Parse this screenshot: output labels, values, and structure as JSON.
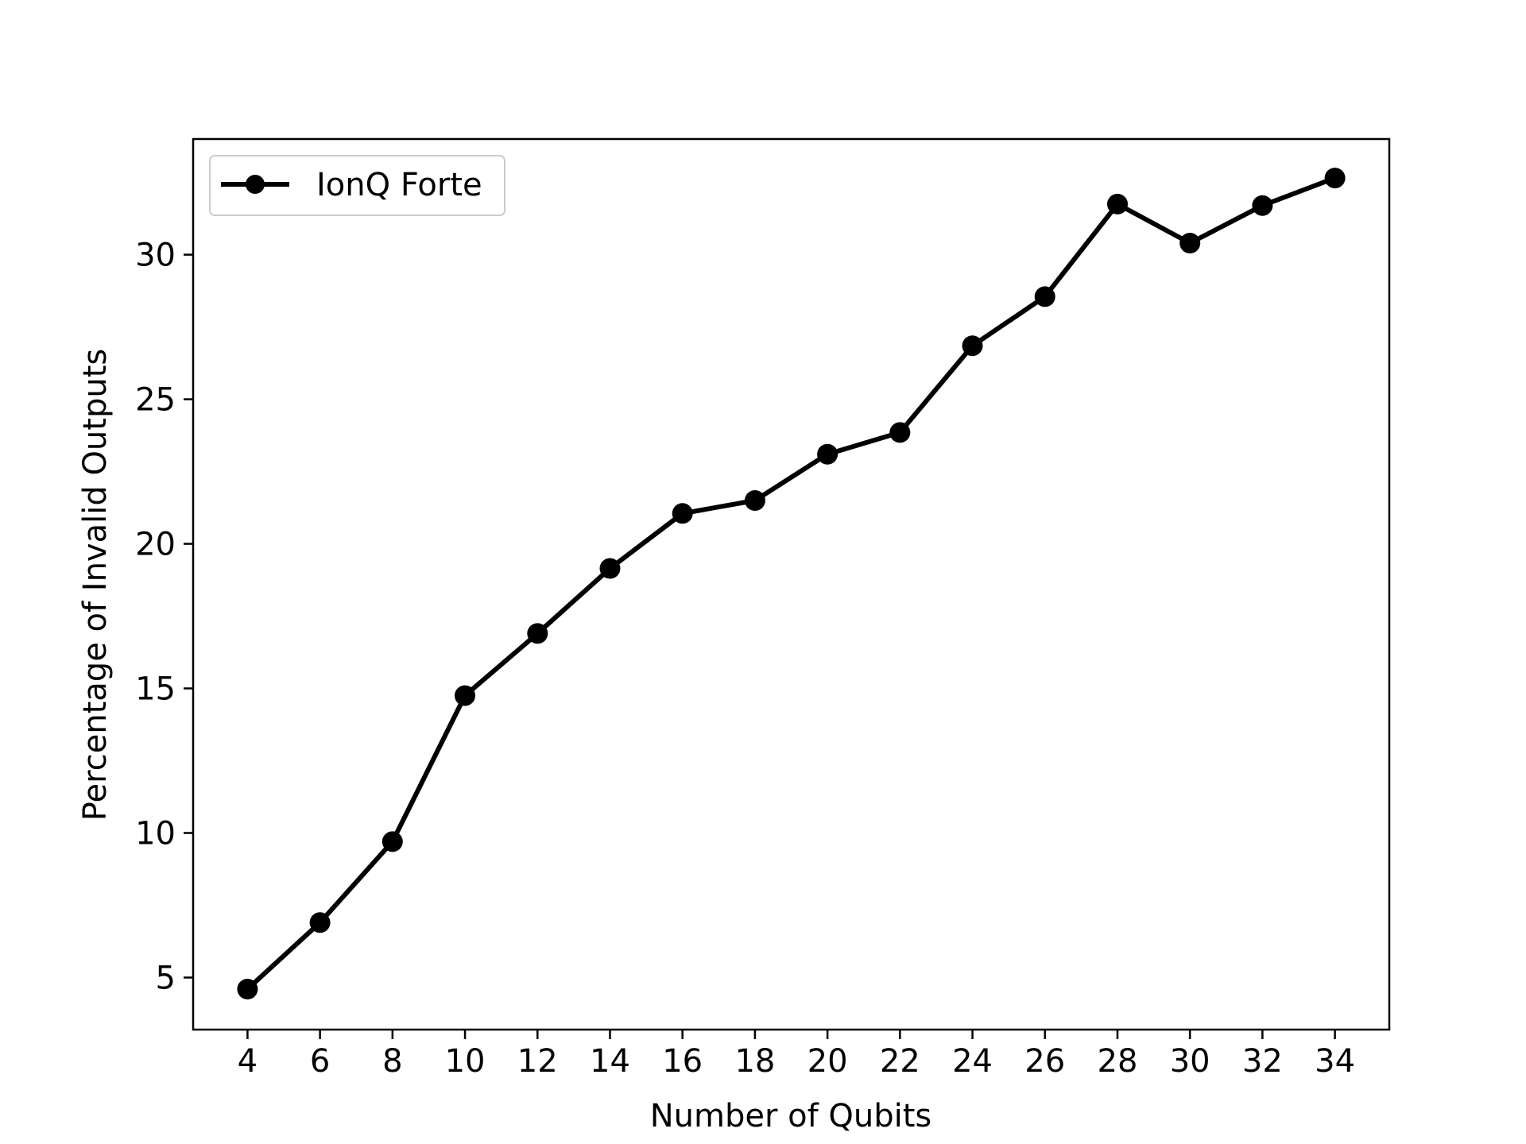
{
  "chart_data": {
    "type": "line",
    "title": "",
    "xlabel": "Number of Qubits",
    "ylabel": "Percentage of Invalid Outputs",
    "x": [
      4,
      6,
      8,
      10,
      12,
      14,
      16,
      18,
      20,
      22,
      24,
      26,
      28,
      30,
      32,
      34
    ],
    "xticks": [
      "4",
      "6",
      "8",
      "10",
      "12",
      "14",
      "16",
      "18",
      "20",
      "22",
      "24",
      "26",
      "28",
      "30",
      "32",
      "34"
    ],
    "yticks": [
      "5",
      "10",
      "15",
      "20",
      "25",
      "30"
    ],
    "xlim": [
      2.5,
      35.5
    ],
    "ylim": [
      3.2,
      34.0
    ],
    "grid": false,
    "legend": {
      "placement": "top-left"
    },
    "series": [
      {
        "name": "IonQ Forte",
        "color": "#000000",
        "marker": "circle",
        "values": [
          4.6,
          6.9,
          9.7,
          14.75,
          16.9,
          19.15,
          21.05,
          21.5,
          23.1,
          23.85,
          26.85,
          28.55,
          31.75,
          30.4,
          31.7,
          32.65
        ]
      }
    ]
  }
}
